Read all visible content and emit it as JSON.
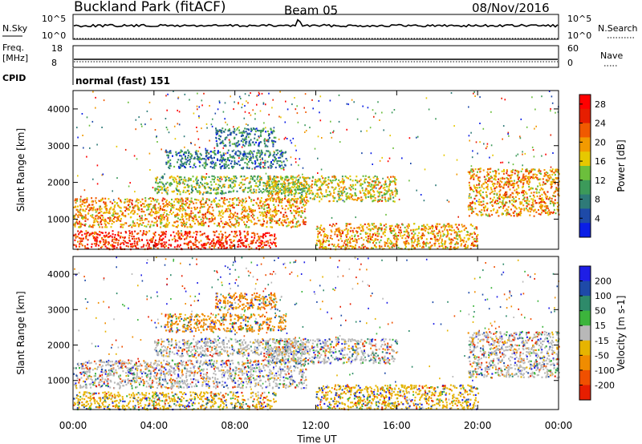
{
  "header": {
    "title": "Buckland Park (fitACF)",
    "beam": "Beam 05",
    "date": "08/Nov/2016"
  },
  "panels": {
    "nsky_label": "N.Sky",
    "nsearch_label": "N.Search",
    "noise_ticks_left": [
      "10^5",
      "10^0"
    ],
    "noise_ticks_right": [
      "10^5",
      "10^0"
    ],
    "freq_label": "Freq.",
    "freq_unit": "[MHz]",
    "freq_ticks": [
      "18",
      "8"
    ],
    "nave_label": "Nave",
    "nave_ticks": [
      "60",
      "0"
    ],
    "cpid_label": "CPID",
    "cpid_text": "normal (fast) 151"
  },
  "chart_data": [
    {
      "type": "heatmap",
      "name": "power",
      "ylabel": "Slant Range [km]",
      "xlabel": "Time UT",
      "x_ticks": [
        "00:00",
        "04:00",
        "08:00",
        "12:00",
        "16:00",
        "20:00",
        "00:00"
      ],
      "xlim_hours": [
        0,
        24
      ],
      "y_ticks": [
        1000,
        2000,
        3000,
        4000
      ],
      "ylim": [
        180,
        4500
      ],
      "colorbar": {
        "label": "Power [dB]",
        "ticks": [
          4,
          8,
          12,
          16,
          20,
          24,
          28
        ],
        "range": [
          0,
          30
        ],
        "colors": [
          "#0a1ee6",
          "#1e4aa8",
          "#2e7a78",
          "#3c9a5a",
          "#6cbf3c",
          "#e6c800",
          "#f29a00",
          "#f05a00",
          "#e61e00",
          "#ff0000"
        ]
      },
      "regions": [
        {
          "t0": 0,
          "t1": 10,
          "r0": 200,
          "r1": 700,
          "level": 8
        },
        {
          "t0": 0,
          "t1": 11.5,
          "r0": 800,
          "r1": 1600,
          "level": 6
        },
        {
          "t0": 4,
          "t1": 11.5,
          "r0": 1700,
          "r1": 2200,
          "level": 4
        },
        {
          "t0": 4.5,
          "t1": 10.5,
          "r0": 2400,
          "r1": 2900,
          "level": 2
        },
        {
          "t0": 7,
          "t1": 10,
          "r0": 3000,
          "r1": 3500,
          "level": 2
        },
        {
          "t0": 9.5,
          "t1": 16,
          "r0": 1500,
          "r1": 2200,
          "level": 5
        },
        {
          "t0": 12,
          "t1": 20,
          "r0": 200,
          "r1": 900,
          "level": 6
        },
        {
          "t0": 19.5,
          "t1": 24,
          "r0": 1100,
          "r1": 2400,
          "level": 6
        }
      ]
    },
    {
      "type": "heatmap",
      "name": "velocity",
      "ylabel": "Slant Range [km]",
      "xlabel": "Time UT",
      "x_ticks": [
        "00:00",
        "04:00",
        "08:00",
        "12:00",
        "16:00",
        "20:00",
        "00:00"
      ],
      "xlim_hours": [
        0,
        24
      ],
      "y_ticks": [
        1000,
        2000,
        3000,
        4000
      ],
      "ylim": [
        180,
        4500
      ],
      "colorbar": {
        "label": "Velocity [m s-1]",
        "ticks": [
          200,
          100,
          50,
          15,
          -15,
          -50,
          -100,
          -200
        ],
        "colors": [
          "#1e1ee6",
          "#1e4aa8",
          "#2e8a6a",
          "#3cb43c",
          "#b8b8b8",
          "#e6b400",
          "#f08c00",
          "#f05000",
          "#e61e00"
        ]
      },
      "regions": [
        {
          "t0": 0,
          "t1": 10,
          "r0": 200,
          "r1": 700,
          "level": 5
        },
        {
          "t0": 0,
          "t1": 11.5,
          "r0": 800,
          "r1": 1600,
          "level": 4
        },
        {
          "t0": 4,
          "t1": 11.5,
          "r0": 1700,
          "r1": 2200,
          "level": 4
        },
        {
          "t0": 4.5,
          "t1": 10.5,
          "r0": 2400,
          "r1": 2900,
          "level": 6
        },
        {
          "t0": 7,
          "t1": 10,
          "r0": 3000,
          "r1": 3500,
          "level": 6
        },
        {
          "t0": 9.5,
          "t1": 16,
          "r0": 1500,
          "r1": 2200,
          "level": 4
        },
        {
          "t0": 12,
          "t1": 20,
          "r0": 200,
          "r1": 900,
          "level": 5
        },
        {
          "t0": 19.5,
          "t1": 24,
          "r0": 1100,
          "r1": 2400,
          "level": 4
        }
      ]
    }
  ],
  "colors": {
    "noise_line": "#000000",
    "axis": "#000000"
  }
}
